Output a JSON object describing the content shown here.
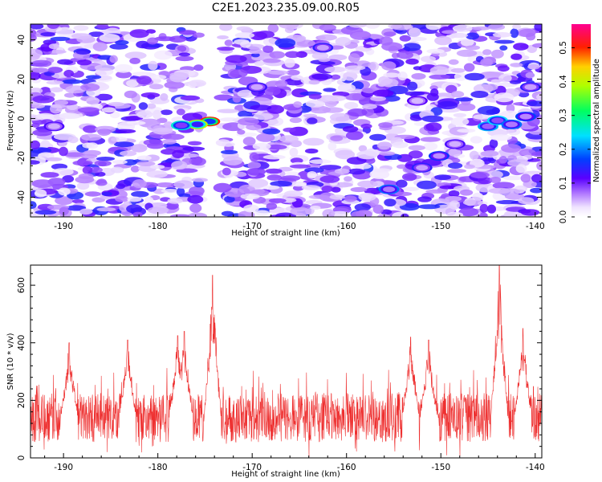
{
  "title": "C2E1.2023.235.09.00.R05",
  "chart_data": [
    {
      "type": "heatmap",
      "xlabel": "Height of straight line (km)",
      "ylabel": "Frequency (Hz)",
      "xlim": [
        -193.5,
        -139.3
      ],
      "ylim": [
        -50,
        48
      ],
      "xticks": [
        -190,
        -180,
        -170,
        -160,
        -150,
        -140
      ],
      "yticks": [
        -40,
        -20,
        0,
        20,
        40
      ],
      "colorbar": {
        "label": "Normalized spectral amplitude",
        "range": [
          0,
          0.57
        ],
        "ticks": [
          0.0,
          0.1,
          0.2,
          0.3,
          0.4,
          0.5
        ],
        "colormap": "rainbow (white, violet, blue, cyan, green, yellow, red, magenta)"
      },
      "gap_x": [
        -175.5,
        -173.2
      ],
      "hotspots": [
        {
          "x": -174.5,
          "y": -1.5,
          "value": 0.48
        },
        {
          "x": -175.8,
          "y": -3,
          "value": 0.38
        },
        {
          "x": -177.5,
          "y": -3.5,
          "value": 0.24
        },
        {
          "x": -155.5,
          "y": -36,
          "value": 0.17
        },
        {
          "x": -152.0,
          "y": -25,
          "value": 0.12
        },
        {
          "x": -150.2,
          "y": -19,
          "value": 0.14
        },
        {
          "x": -148.5,
          "y": -13,
          "value": 0.1
        },
        {
          "x": -145.0,
          "y": -4,
          "value": 0.2
        },
        {
          "x": -144.0,
          "y": -1,
          "value": 0.22
        },
        {
          "x": -142.5,
          "y": -3,
          "value": 0.17
        },
        {
          "x": -141.0,
          "y": 1,
          "value": 0.15
        },
        {
          "x": -140.5,
          "y": 16,
          "value": 0.12
        },
        {
          "x": -162.5,
          "y": 36,
          "value": 0.12
        },
        {
          "x": -169.5,
          "y": 16,
          "value": 0.11
        },
        {
          "x": -191.0,
          "y": -4,
          "value": 0.1
        },
        {
          "x": -152.5,
          "y": 9,
          "value": 0.09
        }
      ]
    },
    {
      "type": "line",
      "xlabel": "Height of straight line (km)",
      "ylabel": "SNR (10 * v/v)",
      "xlim": [
        -193.5,
        -139.3
      ],
      "ylim": [
        0,
        670
      ],
      "xticks": [
        -190,
        -180,
        -170,
        -160,
        -150,
        -140
      ],
      "yticks": [
        0,
        200,
        400,
        600
      ],
      "series": [
        {
          "color": "#ee3030",
          "baseline_mean": 140,
          "noise_spread": 170,
          "peaks": [
            {
              "x": -174.2,
              "y": 635
            },
            {
              "x": -143.8,
              "y": 670
            },
            {
              "x": -177.2,
              "y": 440
            },
            {
              "x": -177.9,
              "y": 425
            },
            {
              "x": -189.4,
              "y": 400
            },
            {
              "x": -183.2,
              "y": 410
            },
            {
              "x": -153.2,
              "y": 420
            },
            {
              "x": -151.3,
              "y": 410
            },
            {
              "x": -141.3,
              "y": 450
            }
          ]
        }
      ]
    }
  ]
}
